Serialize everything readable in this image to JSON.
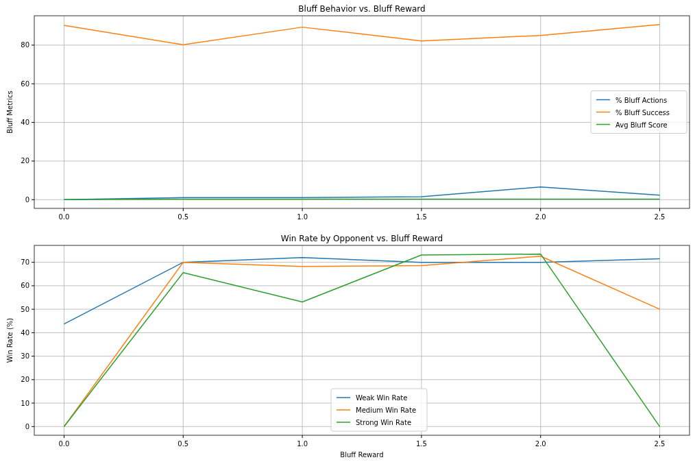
{
  "chart_data": [
    {
      "type": "line",
      "title": "Bluff Behavior vs. Bluff Reward",
      "ylabel": "Bluff Metrics",
      "x": [
        0,
        0.5,
        1,
        1.5,
        2,
        2.5
      ],
      "series": [
        {
          "name": "% Bluff Actions",
          "color": "#1f77b4",
          "values": [
            0,
            1.1,
            1.1,
            1.5,
            6.6,
            2.3
          ]
        },
        {
          "name": "% Bluff Success",
          "color": "#ff7f0e",
          "values": [
            90.2,
            80.2,
            89.3,
            82.2,
            85,
            90.7
          ]
        },
        {
          "name": "Avg Bluff Score",
          "color": "#2ca02c",
          "values": [
            0,
            0.3,
            0.3,
            0.3,
            0.3,
            0.3
          ]
        }
      ],
      "xlim": [
        -0.125,
        2.625
      ],
      "xticks": [
        {
          "value": 0,
          "label": "0.0"
        },
        {
          "value": 0.5,
          "label": "0.5"
        },
        {
          "value": 1,
          "label": "1.0"
        },
        {
          "value": 1.5,
          "label": "1.5"
        },
        {
          "value": 2,
          "label": "2.0"
        },
        {
          "value": 2.5,
          "label": "2.5"
        }
      ],
      "ylim": [
        -4.5,
        95.2
      ],
      "yticks": [
        0,
        20,
        40,
        60,
        80
      ],
      "grid": true,
      "legend": "right"
    },
    {
      "type": "line",
      "title": "Win Rate by Opponent vs. Bluff Reward",
      "xlabel": "Bluff Reward",
      "ylabel": "Win Rate (%)",
      "x": [
        0,
        0.5,
        1,
        1.5,
        2,
        2.5
      ],
      "series": [
        {
          "name": "Weak Win Rate",
          "color": "#1f77b4",
          "values": [
            43.7,
            70,
            72,
            70,
            70,
            71.5
          ]
        },
        {
          "name": "Medium Win Rate",
          "color": "#ff7f0e",
          "values": [
            0,
            70,
            68.2,
            68.6,
            72.6,
            50
          ]
        },
        {
          "name": "Strong Win Rate",
          "color": "#2ca02c",
          "values": [
            0,
            65.6,
            53.1,
            73.1,
            73.5,
            0
          ]
        }
      ],
      "xlim": [
        -0.125,
        2.625
      ],
      "xticks": [
        {
          "value": 0,
          "label": "0.0"
        },
        {
          "value": 0.5,
          "label": "0.5"
        },
        {
          "value": 1,
          "label": "1.0"
        },
        {
          "value": 1.5,
          "label": "1.5"
        },
        {
          "value": 2,
          "label": "2.0"
        },
        {
          "value": 2.5,
          "label": "2.5"
        }
      ],
      "ylim": [
        -3.7,
        77.2
      ],
      "yticks": [
        0,
        10,
        20,
        30,
        40,
        50,
        60,
        70
      ],
      "grid": true,
      "legend": "bottom"
    }
  ]
}
